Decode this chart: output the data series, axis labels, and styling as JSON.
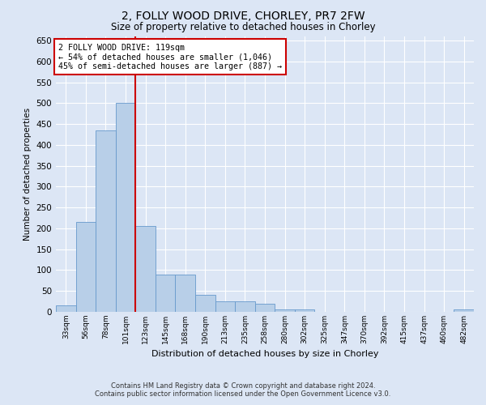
{
  "title": "2, FOLLY WOOD DRIVE, CHORLEY, PR7 2FW",
  "subtitle": "Size of property relative to detached houses in Chorley",
  "xlabel": "Distribution of detached houses by size in Chorley",
  "ylabel": "Number of detached properties",
  "footer_line1": "Contains HM Land Registry data © Crown copyright and database right 2024.",
  "footer_line2": "Contains public sector information licensed under the Open Government Licence v3.0.",
  "annotation_title": "2 FOLLY WOOD DRIVE: 119sqm",
  "annotation_line1": "← 54% of detached houses are smaller (1,046)",
  "annotation_line2": "45% of semi-detached houses are larger (887) →",
  "bin_labels": [
    "33sqm",
    "56sqm",
    "78sqm",
    "101sqm",
    "123sqm",
    "145sqm",
    "168sqm",
    "190sqm",
    "213sqm",
    "235sqm",
    "258sqm",
    "280sqm",
    "302sqm",
    "325sqm",
    "347sqm",
    "370sqm",
    "392sqm",
    "415sqm",
    "437sqm",
    "460sqm",
    "482sqm"
  ],
  "bar_values": [
    15,
    215,
    435,
    500,
    205,
    90,
    90,
    40,
    25,
    25,
    20,
    5,
    5,
    0,
    0,
    0,
    0,
    0,
    0,
    0,
    5
  ],
  "bar_color": "#b8cfe8",
  "bar_edge_color": "#6699cc",
  "red_line_color": "#cc0000",
  "red_line_bin": 4,
  "annotation_box_color": "#ffffff",
  "annotation_box_edge": "#cc0000",
  "background_color": "#dce6f5",
  "plot_background": "#dce6f5",
  "ylim": [
    0,
    660
  ],
  "yticks": [
    0,
    50,
    100,
    150,
    200,
    250,
    300,
    350,
    400,
    450,
    500,
    550,
    600,
    650
  ]
}
